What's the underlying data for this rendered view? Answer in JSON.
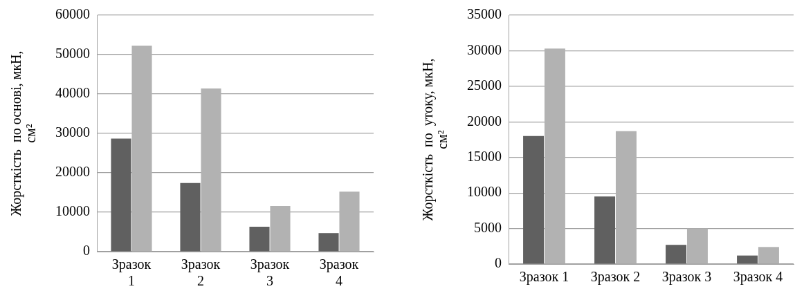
{
  "chart_data": [
    {
      "type": "bar",
      "ylabel": "Жорсткість  по основі, мкН, см²",
      "categories": [
        "Зразок 1",
        "Зразок 2",
        "Зразок 3",
        "Зразок 4"
      ],
      "series": [
        {
          "color": "#606060",
          "values": [
            28700,
            17400,
            6300,
            4700
          ]
        },
        {
          "color": "#b2b2b2",
          "values": [
            52300,
            41400,
            11600,
            15200
          ]
        }
      ],
      "ylim": [
        0,
        60000
      ],
      "yticks": [
        0,
        10000,
        20000,
        30000,
        40000,
        50000,
        60000
      ],
      "grid": "y",
      "legend": false
    },
    {
      "type": "bar",
      "ylabel": "Жорсткість  по  утоку, мкН, см²",
      "categories": [
        "Зразок 1",
        "Зразок 2",
        "Зразок 3",
        "Зразок 4"
      ],
      "series": [
        {
          "color": "#606060",
          "values": [
            18000,
            9500,
            2700,
            1200
          ]
        },
        {
          "color": "#b2b2b2",
          "values": [
            30300,
            18700,
            5000,
            2400
          ]
        }
      ],
      "ylim": [
        0,
        35000
      ],
      "yticks": [
        0,
        5000,
        10000,
        15000,
        20000,
        25000,
        30000,
        35000
      ],
      "grid": "y",
      "legend": false
    }
  ]
}
